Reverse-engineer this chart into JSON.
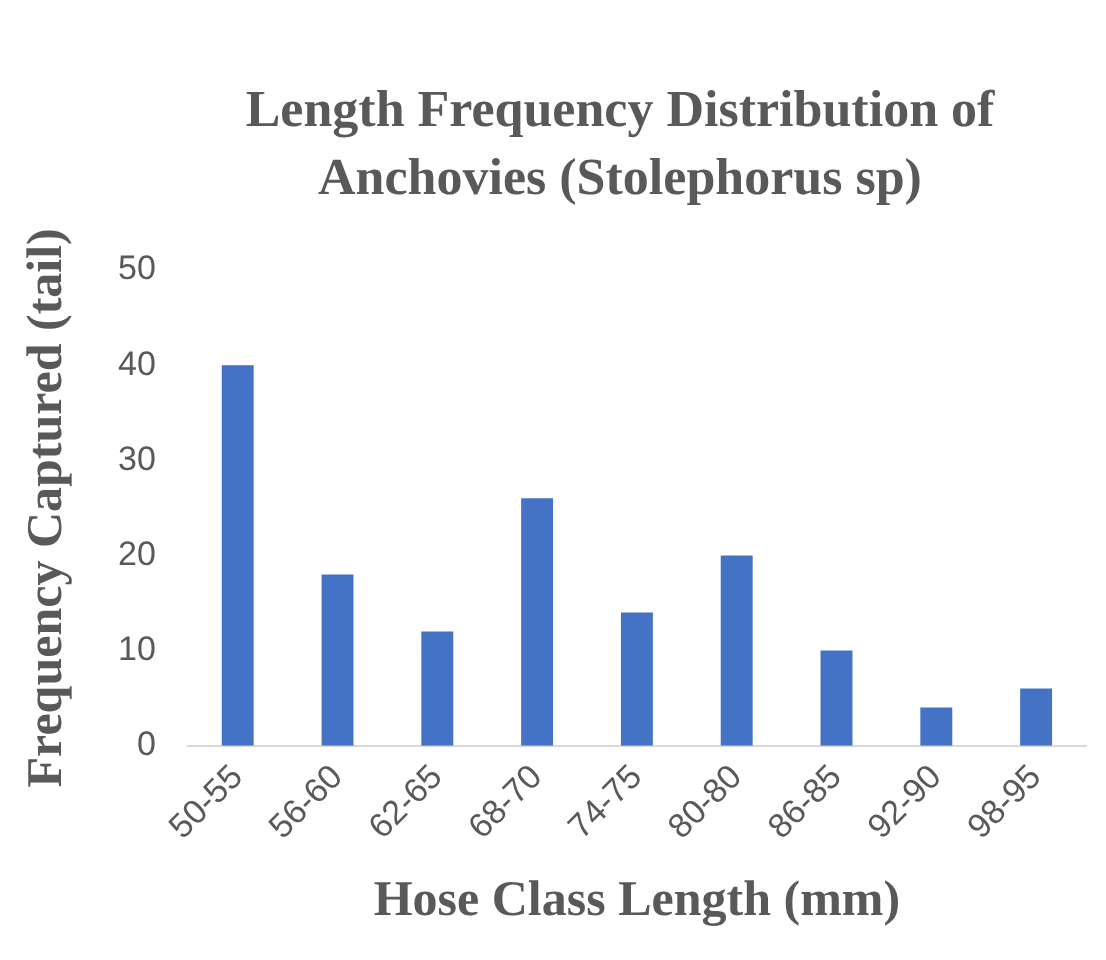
{
  "chart_data": {
    "type": "bar",
    "title": "Length Frequency Distribution of Anchovies (Stolephorus sp)",
    "xlabel": "Hose Class Length (mm)",
    "ylabel": "Frequency Captured (tail)",
    "categories": [
      "50-55",
      "56-60",
      "62-65",
      "68-70",
      "74-75",
      "80-80",
      "86-85",
      "92-90",
      "98-95"
    ],
    "values": [
      40,
      18,
      12,
      26,
      14,
      20,
      10,
      4,
      6
    ],
    "color": "#4472c4",
    "ylim": [
      0,
      50
    ],
    "yticks": [
      0,
      10,
      20,
      30,
      40,
      50
    ],
    "grid": false,
    "legend": false
  }
}
